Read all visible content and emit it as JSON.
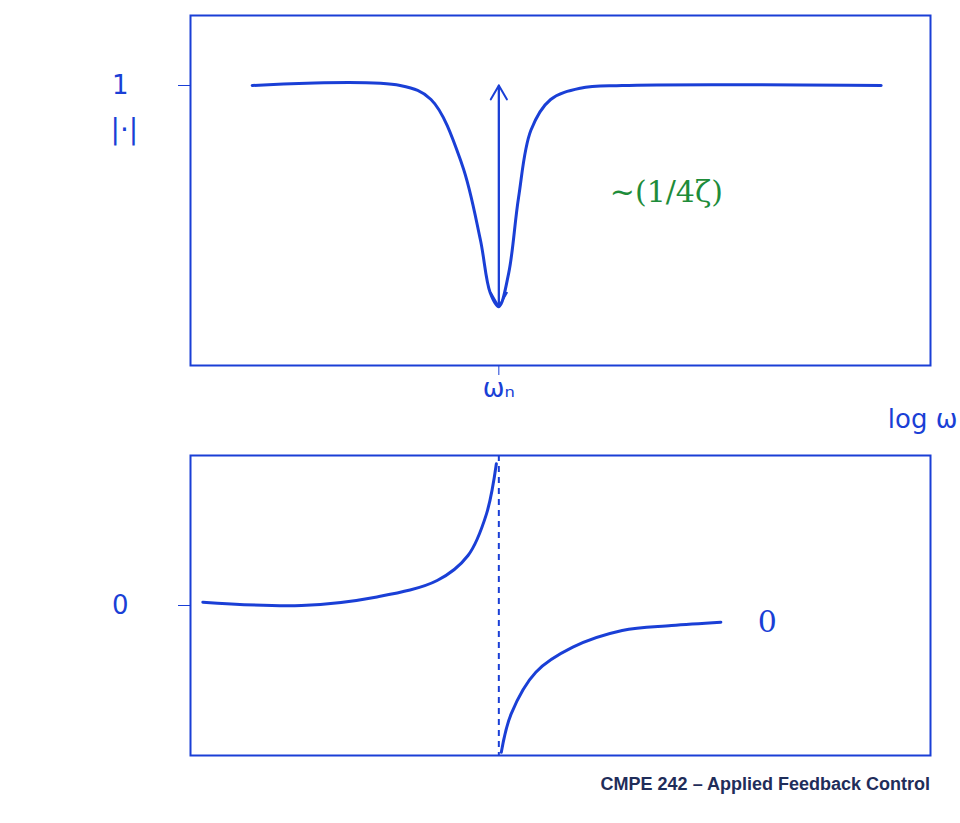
{
  "chart_data": [
    {
      "type": "line",
      "y_label": "|·|",
      "x_label": "log ω",
      "xlim": [
        -2.5,
        3.5
      ],
      "xticks": [
        {
          "value": 0,
          "label": "ωₙ"
        }
      ],
      "ylim": [
        0,
        1.25
      ],
      "yticks": [
        1
      ],
      "grid": false,
      "color": "#1a3fd6",
      "x": [
        -2.0,
        -0.8,
        -0.55,
        -0.3,
        -0.15,
        -0.07,
        0,
        0.08,
        0.16,
        0.26,
        0.42,
        0.66,
        1.0,
        3.1
      ],
      "values": [
        1,
        1,
        0.95,
        0.72,
        0.45,
        0.26,
        0.21,
        0.33,
        0.6,
        0.84,
        0.95,
        0.99,
        1,
        1
      ],
      "annotations": [
        {
          "text": "~(1/4ζ)",
          "x": 0.9,
          "y": 0.62,
          "color": "#1e8c3a"
        }
      ]
    },
    {
      "type": "line",
      "xlim": [
        -2.5,
        3.5
      ],
      "xticks": [
        0
      ],
      "ylim": [
        -90,
        90
      ],
      "yticks": [
        0
      ],
      "grid": true,
      "tick_labels": "y",
      "color": "#1a3fd6",
      "x": [
        -2.4,
        -1.6,
        -1.0,
        -0.5,
        -0.25,
        -0.1,
        -0.02,
        0,
        0.02,
        0.1,
        0.3,
        0.6,
        1.0,
        1.4,
        1.8
      ],
      "values": [
        2,
        0,
        5,
        15,
        30,
        55,
        85,
        null,
        -88,
        -65,
        -40,
        -25,
        -15,
        -12,
        -10
      ],
      "annotations": [
        {
          "text": "0",
          "x": 2.1,
          "y": -10,
          "color": "#1a3fd6"
        }
      ]
    }
  ],
  "caption": "CMPE 242 – Applied Feedback Control"
}
